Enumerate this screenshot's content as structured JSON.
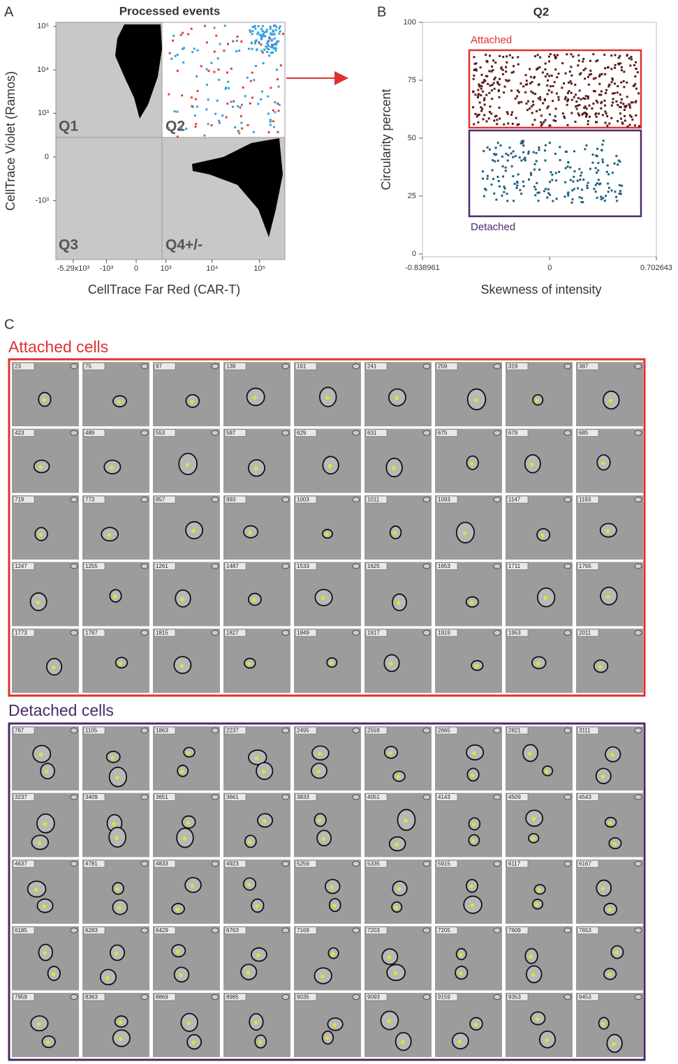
{
  "panel_a": {
    "label": "A",
    "title": "Processed events",
    "y_label": "CellTrace Violet (Ramos)",
    "x_label": "CellTrace Far Red (CAR-T)",
    "yticks": [
      {
        "value": 100000,
        "label": "10⁵"
      },
      {
        "value": 10000,
        "label": "10⁴"
      },
      {
        "value": 1000,
        "label": "10³"
      },
      0,
      {
        "value": -1000,
        "label": "-10³"
      }
    ],
    "xticks": [
      {
        "value": -5290,
        "label": "-5.29x10³"
      },
      {
        "value": -1000,
        "label": "-10³"
      },
      0,
      {
        "value": 1000,
        "label": "10³"
      },
      {
        "value": 10000,
        "label": "10⁴"
      },
      {
        "value": 100000,
        "label": "10⁵"
      }
    ],
    "quadrants": [
      "Q1",
      "Q2",
      "Q3",
      "Q4+/-"
    ]
  },
  "panel_b": {
    "label": "B",
    "title": "Q2",
    "y_label": "Circularity percent",
    "x_label": "Skewness of intensity",
    "ylim": [
      0,
      100
    ],
    "yticks": [
      0,
      25,
      50,
      75,
      100
    ],
    "xlim": [
      -0.838961,
      0.702643
    ],
    "xticks": [
      -0.838961,
      0,
      0.702643
    ],
    "gates": [
      "Attached",
      "Detached"
    ]
  },
  "panel_c": {
    "label": "C",
    "attached": {
      "title": "Attached cells",
      "ids": [
        23,
        75,
        97,
        139,
        161,
        241,
        259,
        319,
        387,
        423,
        489,
        553,
        587,
        629,
        631,
        675,
        679,
        685,
        719,
        773,
        857,
        993,
        1003,
        1011,
        1093,
        1147,
        1193,
        1247,
        1255,
        1261,
        1487,
        1533,
        1625,
        1653,
        1711,
        1765,
        1773,
        1787,
        1815,
        1827,
        1849,
        1917,
        1919,
        1953,
        2011
      ]
    },
    "detached": {
      "title": "Detached cells",
      "ids": [
        767,
        1105,
        1863,
        2237,
        2495,
        2559,
        2665,
        2821,
        3111,
        3237,
        3409,
        3651,
        3661,
        3833,
        4051,
        4143,
        4509,
        4543,
        4637,
        4781,
        4833,
        4923,
        5259,
        5335,
        5915,
        6117,
        6167,
        6185,
        6283,
        6429,
        6763,
        7169,
        7203,
        7205,
        7609,
        7653,
        7959,
        8363,
        8869,
        8985,
        9035,
        9093,
        9159,
        9353,
        9453
      ]
    }
  }
}
